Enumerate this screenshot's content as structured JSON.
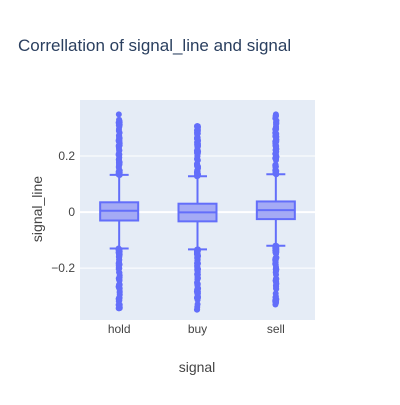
{
  "chart_data": {
    "type": "box",
    "title": "Correllation of signal_line and signal",
    "xlabel": "signal",
    "ylabel": "signal_line",
    "categories": [
      "hold",
      "buy",
      "sell"
    ],
    "yticks": [
      -0.2,
      0,
      0.2
    ],
    "ytick_labels": [
      "−0.2",
      "0",
      "0.2"
    ],
    "ylim": [
      -0.385,
      0.4
    ],
    "grid": true,
    "colors": {
      "plot_bg": "#e5ecf6",
      "box_fill": "#a4aaf5",
      "box_line": "#636efa",
      "grid": "#ffffff",
      "text": "#444444",
      "title": "#2a3f5f"
    },
    "series": [
      {
        "name": "hold",
        "boxes": [
          {
            "category": "hold",
            "min": -0.345,
            "lower_fence": -0.13,
            "q1": -0.03,
            "median": 0.005,
            "q3": 0.035,
            "upper_fence": 0.133,
            "max": 0.35
          }
        ]
      },
      {
        "name": "buy",
        "boxes": [
          {
            "category": "buy",
            "min": -0.35,
            "lower_fence": -0.133,
            "q1": -0.033,
            "median": -0.001,
            "q3": 0.03,
            "upper_fence": 0.128,
            "max": 0.32
          }
        ]
      },
      {
        "name": "sell",
        "boxes": [
          {
            "category": "sell",
            "min": -0.34,
            "lower_fence": -0.12,
            "q1": -0.025,
            "median": 0.007,
            "q3": 0.038,
            "upper_fence": 0.135,
            "max": 0.35
          }
        ]
      }
    ]
  }
}
